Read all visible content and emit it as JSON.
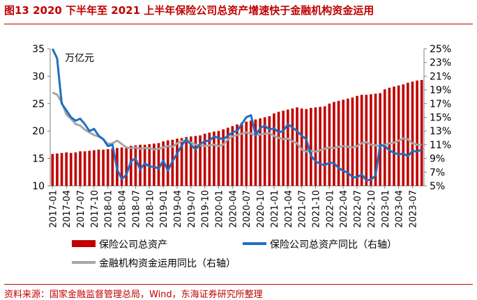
{
  "figure": {
    "title": "图13  2020 下半年至 2021 上半年保险公司总资产增速快于金融机构资金运用",
    "source": "资料来源：国家金融监督管理总局，Wind，东海证券研究所整理"
  },
  "chart_data": {
    "type": "bar",
    "title": "2020 下半年至 2021 上半年保险公司总资产增速快于金融机构资金运用",
    "unit_label": "万亿元",
    "left_axis": {
      "min": 10,
      "max": 35,
      "ticks": [
        "35",
        "30",
        "25",
        "20",
        "15",
        "10"
      ],
      "tick_values": [
        35,
        30,
        25,
        20,
        15,
        10
      ]
    },
    "right_axis": {
      "min": 5,
      "max": 25,
      "ticks": [
        "25%",
        "23%",
        "21%",
        "19%",
        "17%",
        "15%",
        "13%",
        "11%",
        "9%",
        "7%",
        "5%"
      ],
      "tick_values": [
        25,
        23,
        21,
        19,
        17,
        15,
        13,
        11,
        9,
        7,
        5
      ]
    },
    "x_labels": [
      "2017-01",
      "2017-04",
      "2017-07",
      "2017-10",
      "2018-01",
      "2018-04",
      "2018-07",
      "2018-10",
      "2019-01",
      "2019-04",
      "2019-07",
      "2019-10",
      "2020-01",
      "2020-04",
      "2020-07",
      "2020-10",
      "2021-01",
      "2021-04",
      "2021-07",
      "2021-10",
      "2022-01",
      "2022-04",
      "2022-07",
      "2022-10",
      "2023-01",
      "2023-04",
      "2023-07"
    ],
    "x_label_index": [
      0,
      3,
      6,
      9,
      12,
      15,
      18,
      21,
      24,
      27,
      30,
      33,
      36,
      39,
      42,
      45,
      48,
      51,
      54,
      57,
      60,
      63,
      66,
      69,
      72,
      75,
      78
    ],
    "series": [
      {
        "name": "保险公司总资产",
        "axis": "left",
        "kind": "bar",
        "color": "#c00000",
        "values": [
          15.8,
          15.9,
          16.0,
          16.1,
          16.0,
          16.1,
          16.3,
          16.3,
          16.4,
          16.5,
          16.6,
          16.6,
          16.7,
          16.8,
          16.9,
          17.0,
          17.1,
          17.3,
          17.4,
          17.5,
          17.5,
          17.6,
          17.7,
          17.8,
          18.1,
          18.3,
          18.4,
          18.6,
          18.7,
          18.9,
          19.0,
          19.1,
          19.2,
          19.5,
          19.7,
          19.9,
          20.0,
          20.3,
          20.6,
          20.9,
          21.2,
          21.5,
          21.7,
          21.9,
          22.1,
          22.3,
          22.5,
          22.7,
          23.2,
          23.5,
          23.7,
          23.9,
          24.1,
          24.3,
          24.1,
          24.0,
          24.2,
          24.3,
          24.4,
          24.5,
          25.0,
          25.3,
          25.5,
          25.7,
          25.9,
          26.1,
          26.4,
          26.6,
          26.6,
          26.7,
          26.8,
          26.9,
          27.6,
          27.9,
          28.1,
          28.3,
          28.5,
          28.8,
          29.0,
          29.2,
          29.3
        ]
      },
      {
        "name": "保险公司总资产同比（右轴）",
        "axis": "right",
        "kind": "line",
        "color": "#1f6fbf",
        "values": [
          25.0,
          23.6,
          17.0,
          16.0,
          15.0,
          14.5,
          14.8,
          14.0,
          13.0,
          13.3,
          12.3,
          11.8,
          10.8,
          11.0,
          7.4,
          6.0,
          6.6,
          8.6,
          9.0,
          7.4,
          8.3,
          7.8,
          7.8,
          7.5,
          8.7,
          7.2,
          8.6,
          9.7,
          10.9,
          11.8,
          11.0,
          10.3,
          11.1,
          11.5,
          11.6,
          12.2,
          12.0,
          11.8,
          12.3,
          12.8,
          13.0,
          14.0,
          15.0,
          15.3,
          12.4,
          13.4,
          13.8,
          13.2,
          13.4,
          12.8,
          13.0,
          14.0,
          13.5,
          13.0,
          12.3,
          11.8,
          9.4,
          8.6,
          8.2,
          8.0,
          8.4,
          8.3,
          7.6,
          7.2,
          6.9,
          6.3,
          6.2,
          6.7,
          5.8,
          5.9,
          6.5,
          11.0,
          10.8,
          10.2,
          9.8,
          9.6,
          9.7,
          9.3,
          10.1,
          10.0,
          10.3
        ]
      },
      {
        "name": "金融机构资金运用同比（右轴）",
        "axis": "right",
        "kind": "line",
        "color": "#a6a6a6",
        "values": [
          18.6,
          18.3,
          17.2,
          15.4,
          14.8,
          14.0,
          13.8,
          13.2,
          12.8,
          12.4,
          12.2,
          11.8,
          11.1,
          11.2,
          11.6,
          11.1,
          10.6,
          10.5,
          10.6,
          10.4,
          10.5,
          10.5,
          10.3,
          10.4,
          10.6,
          10.8,
          10.7,
          11.2,
          11.5,
          11.6,
          11.3,
          11.0,
          10.9,
          10.8,
          10.9,
          11.0,
          10.8,
          11.0,
          11.8,
          12.2,
          12.4,
          12.6,
          12.8,
          12.6,
          12.4,
          12.5,
          12.6,
          12.7,
          12.3,
          12.0,
          11.8,
          11.9,
          11.5,
          11.2,
          10.3,
          10.0,
          10.1,
          10.0,
          10.2,
          10.4,
          10.6,
          10.5,
          10.7,
          10.8,
          10.7,
          10.6,
          10.8,
          11.2,
          11.4,
          11.0,
          10.9,
          10.8,
          11.0,
          11.2,
          11.3,
          11.6,
          11.9,
          11.8,
          11.2,
          11.0,
          11.0
        ]
      }
    ],
    "legend": [
      "保险公司总资产",
      "保险公司总资产同比（右轴）",
      "金融机构资金运用同比（右轴）"
    ]
  }
}
